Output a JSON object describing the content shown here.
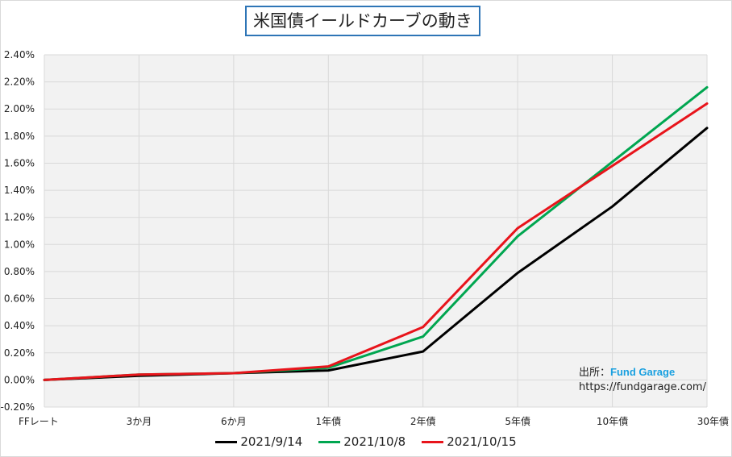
{
  "title": "米国債イールドカーブの動き",
  "source": {
    "label": "出所：",
    "brand": "Fund Garage",
    "url": "https://fundgarage.com/"
  },
  "colors": {
    "plot_bg": "#f2f2f2",
    "grid": "#d9d9d9",
    "title_border": "#2e75b6"
  },
  "chart_data": {
    "type": "line",
    "title": "米国債イールドカーブの動き",
    "categories": [
      "FFレート",
      "3か月",
      "6か月",
      "1年債",
      "2年債",
      "5年債",
      "10年債",
      "30年債"
    ],
    "y_ticks": [
      "-0.20%",
      "0.00%",
      "0.20%",
      "0.40%",
      "0.60%",
      "0.80%",
      "1.00%",
      "1.20%",
      "1.40%",
      "1.60%",
      "1.80%",
      "2.00%",
      "2.20%",
      "2.40%"
    ],
    "ylim": [
      -0.2,
      2.4
    ],
    "y_unit": "%",
    "grid": true,
    "legend_position": "bottom",
    "series": [
      {
        "name": "2021/9/14",
        "color": "#000000",
        "values": [
          0.0,
          0.03,
          0.05,
          0.07,
          0.21,
          0.79,
          1.28,
          1.86
        ]
      },
      {
        "name": "2021/10/8",
        "color": "#00a650",
        "values": [
          0.0,
          0.04,
          0.05,
          0.09,
          0.32,
          1.06,
          1.61,
          2.16
        ]
      },
      {
        "name": "2021/10/15",
        "color": "#e8141b",
        "values": [
          0.0,
          0.04,
          0.05,
          0.1,
          0.39,
          1.12,
          1.58,
          2.04
        ]
      }
    ]
  }
}
